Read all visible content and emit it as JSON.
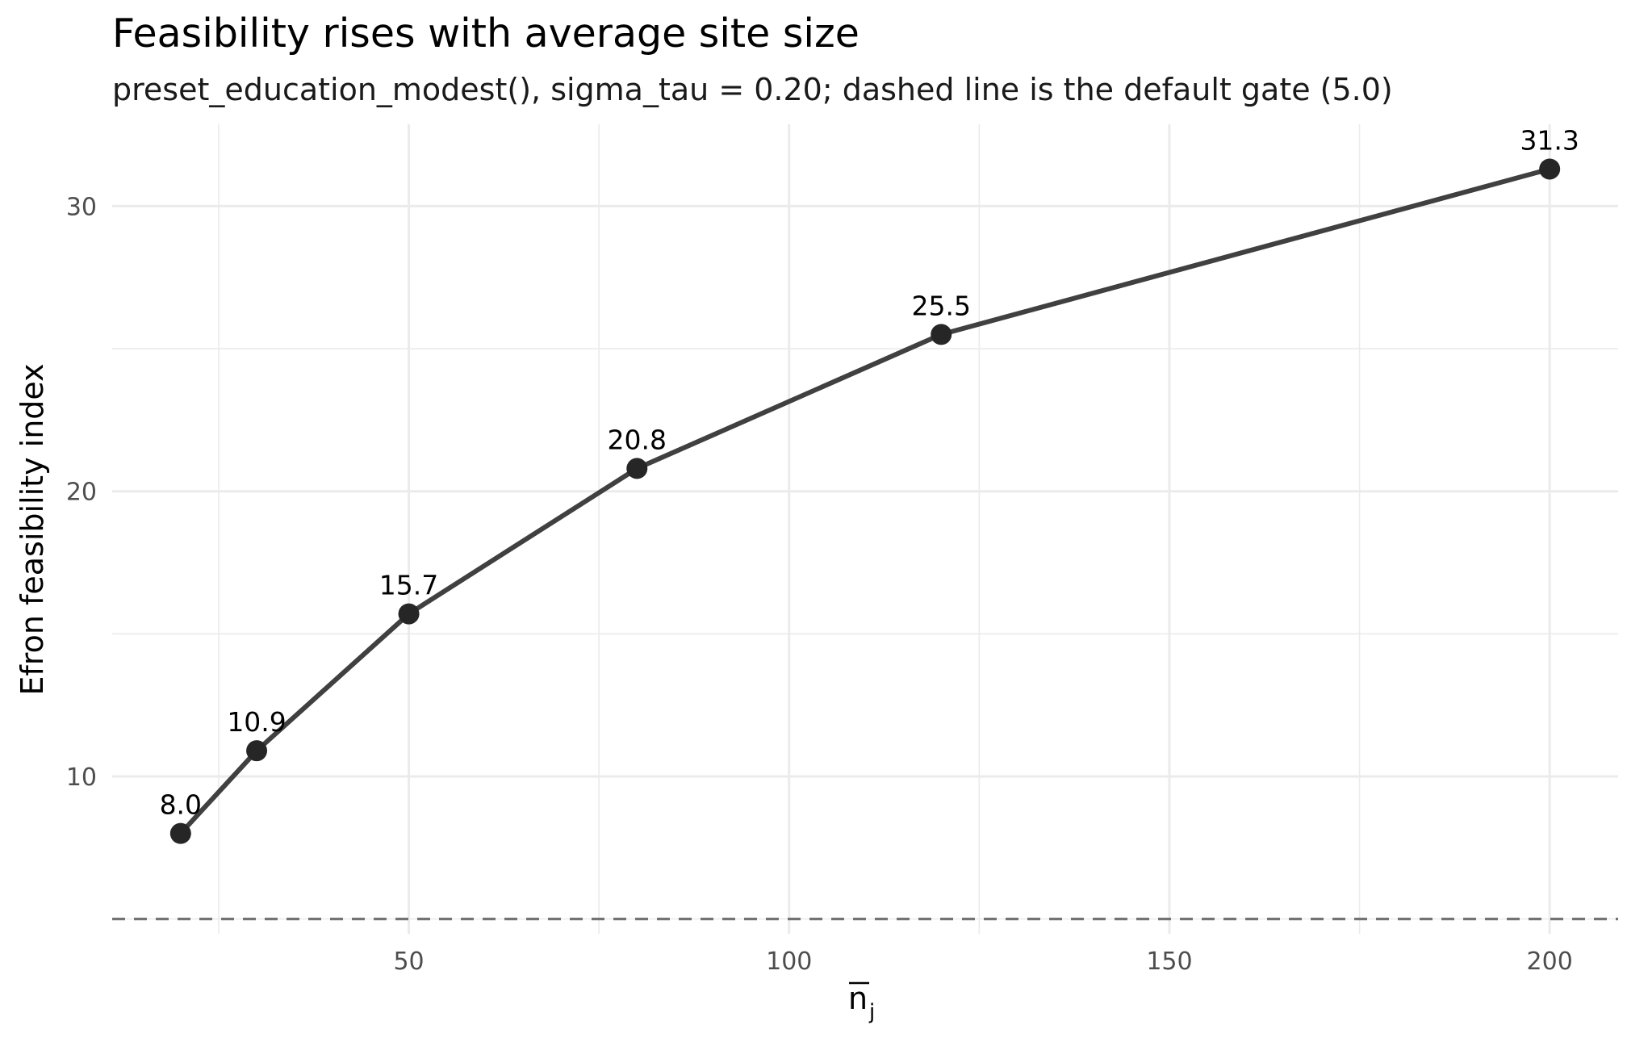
{
  "chart_data": {
    "type": "line",
    "title": "Feasibility rises with average site size",
    "subtitle": "preset_education_modest(), sigma_tau = 0.20; dashed line is the default gate (5.0)",
    "xlabel_base": "n",
    "xlabel_subscript": "j",
    "ylabel": "Efron feasibility index",
    "x": [
      20,
      30,
      50,
      80,
      120,
      200
    ],
    "y": [
      8.0,
      10.9,
      15.7,
      20.8,
      25.5,
      31.3
    ],
    "point_labels": [
      "8.0",
      "10.9",
      "15.7",
      "20.8",
      "25.5",
      "31.3"
    ],
    "x_ticks": [
      50,
      100,
      150,
      200
    ],
    "x_tick_labels": [
      "50",
      "100",
      "150",
      "200"
    ],
    "y_ticks": [
      10,
      20,
      30
    ],
    "y_tick_labels": [
      "10",
      "20",
      "30"
    ],
    "xlim": [
      11,
      209
    ],
    "ylim": [
      4.48,
      32.87
    ],
    "reference_line": {
      "y": 5.0,
      "style": "dashed"
    },
    "grid": true,
    "legend": "none",
    "colors": {
      "line": "#404040",
      "points": "#262626",
      "reference": "#737373",
      "grid": "#ebebeb"
    }
  }
}
